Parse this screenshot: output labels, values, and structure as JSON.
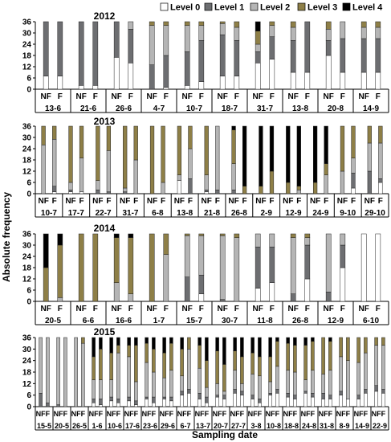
{
  "legend": {
    "items": [
      {
        "label": "Level 0",
        "color": "#ffffff"
      },
      {
        "label": "Level 1",
        "color": "#6d6e71"
      },
      {
        "label": "Level 2",
        "color": "#b5b5b5"
      },
      {
        "label": "Level 3",
        "color": "#8e7f47"
      },
      {
        "label": "Level 4",
        "color": "#000000"
      }
    ]
  },
  "ylabel": "Absolute frequency",
  "xlabel": "Sampling date",
  "chart_data": [
    {
      "type": "bar",
      "title": "2012",
      "ylim": [
        0,
        36
      ],
      "yticks": [
        0,
        6,
        12,
        18,
        24,
        30,
        36
      ],
      "bar_labels": [
        "NF",
        "F"
      ],
      "groups": [
        {
          "date": "13-6",
          "NF": [
            7,
            29,
            0,
            0,
            0
          ],
          "F": [
            7,
            29,
            0,
            0,
            0
          ]
        },
        {
          "date": "21-6",
          "NF": [
            2,
            34,
            0,
            0,
            0
          ],
          "F": [
            2,
            34,
            0,
            0,
            0
          ]
        },
        {
          "date": "26-6",
          "NF": [
            17,
            19,
            0,
            0,
            0
          ],
          "F": [
            14,
            18,
            4,
            0,
            0
          ]
        },
        {
          "date": "4-7",
          "NF": [
            0,
            13,
            21,
            2,
            0
          ],
          "F": [
            1,
            17,
            16,
            2,
            0
          ]
        },
        {
          "date": "10-7",
          "NF": [
            2,
            18,
            14,
            2,
            0
          ],
          "F": [
            4,
            22,
            8,
            2,
            0
          ]
        },
        {
          "date": "18-7",
          "NF": [
            7,
            22,
            6,
            1,
            0
          ],
          "F": [
            7,
            19,
            7,
            3,
            0
          ]
        },
        {
          "date": "31-7",
          "NF": [
            14,
            6,
            4,
            7,
            5
          ],
          "F": [
            16,
            12,
            6,
            2,
            0
          ]
        },
        {
          "date": "13-8",
          "NF": [
            9,
            17,
            7,
            3,
            0
          ],
          "F": [
            9,
            27,
            0,
            0,
            0
          ]
        },
        {
          "date": "20-8",
          "NF": [
            18,
            8,
            6,
            4,
            0
          ],
          "F": [
            9,
            18,
            9,
            0,
            0
          ]
        },
        {
          "date": "14-9",
          "NF": [
            9,
            18,
            6,
            3,
            0
          ],
          "F": [
            9,
            18,
            6,
            3,
            0
          ]
        }
      ]
    },
    {
      "type": "bar",
      "title": "2013",
      "ylim": [
        0,
        36
      ],
      "yticks": [
        0,
        6,
        12,
        18,
        24,
        30,
        36
      ],
      "bar_labels": [
        "NF",
        "F"
      ],
      "groups": [
        {
          "date": "10-7",
          "NF": [
            0,
            0,
            26,
            10,
            0
          ],
          "F": [
            1,
            3,
            25,
            7,
            0
          ]
        },
        {
          "date": "17-7",
          "NF": [
            1,
            1,
            4,
            30,
            0
          ],
          "F": [
            1,
            0,
            18,
            17,
            0
          ]
        },
        {
          "date": "22-7",
          "NF": [
            0,
            2,
            5,
            29,
            0
          ],
          "F": [
            0,
            1,
            22,
            13,
            0
          ]
        },
        {
          "date": "31-7",
          "NF": [
            0,
            1,
            2,
            33,
            0
          ],
          "F": [
            0,
            0,
            18,
            18,
            0
          ]
        },
        {
          "date": "6-8",
          "NF": [
            0,
            0,
            0,
            36,
            0
          ],
          "F": [
            0,
            0,
            6,
            30,
            0
          ]
        },
        {
          "date": "13-8",
          "NF": [
            7,
            0,
            3,
            26,
            0
          ],
          "F": [
            0,
            8,
            16,
            12,
            0
          ]
        },
        {
          "date": "21-8",
          "NF": [
            1,
            1,
            8,
            26,
            0
          ],
          "F": [
            0,
            2,
            34,
            0,
            0
          ]
        },
        {
          "date": "26-8",
          "NF": [
            0,
            2,
            14,
            18,
            2
          ],
          "F": [
            0,
            0,
            0,
            4,
            32
          ]
        },
        {
          "date": "2-9",
          "NF": [
            0,
            0,
            0,
            4,
            32
          ],
          "F": [
            0,
            0,
            0,
            12,
            24
          ]
        },
        {
          "date": "12-9",
          "NF": [
            0,
            0,
            0,
            6,
            30
          ],
          "F": [
            0,
            0,
            2,
            2,
            32
          ]
        },
        {
          "date": "24-9",
          "NF": [
            0,
            0,
            0,
            6,
            30
          ],
          "F": [
            0,
            0,
            10,
            6,
            20
          ]
        },
        {
          "date": "9-10",
          "NF": [
            0,
            0,
            12,
            24,
            0
          ],
          "F": [
            3,
            8,
            8,
            17,
            0
          ]
        },
        {
          "date": "29-10",
          "NF": [
            0,
            12,
            15,
            9,
            0
          ],
          "F": [
            6,
            2,
            19,
            9,
            0
          ]
        }
      ]
    },
    {
      "type": "bar",
      "title": "2014",
      "ylim": [
        0,
        36
      ],
      "yticks": [
        0,
        6,
        12,
        18,
        24,
        30,
        36
      ],
      "bar_labels": [
        "NF",
        "F"
      ],
      "groups": [
        {
          "date": "20-5",
          "NF": [
            0,
            0,
            0,
            18,
            18
          ],
          "F": [
            0,
            0,
            2,
            28,
            6
          ]
        },
        {
          "date": "6-6",
          "NF": [
            0,
            0,
            0,
            36,
            0
          ],
          "F": [
            0,
            0,
            0,
            36,
            0
          ]
        },
        {
          "date": "16-6",
          "NF": [
            0,
            0,
            10,
            24,
            2
          ],
          "F": [
            0,
            0,
            4,
            30,
            2
          ]
        },
        {
          "date": "1-7",
          "NF": [
            0,
            0,
            0,
            36,
            0
          ],
          "F": [
            0,
            0,
            25,
            11,
            0
          ]
        },
        {
          "date": "15-7",
          "NF": [
            0,
            13,
            22,
            1,
            0
          ],
          "F": [
            4,
            10,
            21,
            1,
            0
          ]
        },
        {
          "date": "30-7",
          "NF": [
            0,
            1,
            34,
            1,
            0
          ],
          "F": [
            0,
            0,
            34,
            2,
            0
          ]
        },
        {
          "date": "11-8",
          "NF": [
            7,
            22,
            7,
            0,
            0
          ],
          "F": [
            10,
            19,
            7,
            0,
            0
          ]
        },
        {
          "date": "26-8",
          "NF": [
            0,
            4,
            30,
            2,
            0
          ],
          "F": [
            12,
            18,
            4,
            2,
            0
          ]
        },
        {
          "date": "12-9",
          "NF": [
            0,
            5,
            31,
            0,
            0
          ],
          "F": [
            18,
            12,
            6,
            0,
            0
          ]
        },
        {
          "date": "6-10",
          "NF": [
            36,
            0,
            0,
            0,
            0
          ],
          "F": [
            36,
            0,
            0,
            0,
            0
          ]
        }
      ]
    },
    {
      "type": "bar",
      "title": "2015",
      "ylim": [
        0,
        36
      ],
      "yticks": [
        0,
        6,
        12,
        18,
        24,
        30,
        36
      ],
      "bar_labels": [
        "NF",
        "F"
      ],
      "groups": [
        {
          "date": "15-5",
          "NF": [
            0,
            7,
            29,
            0,
            0
          ],
          "F": [
            0,
            2,
            34,
            0,
            0
          ]
        },
        {
          "date": "20-5",
          "NF": [
            0,
            1,
            35,
            0,
            0
          ],
          "F": [
            0,
            0,
            36,
            0,
            0
          ]
        },
        {
          "date": "26-5",
          "NF": [
            0,
            0,
            36,
            0,
            0
          ],
          "F": [
            0,
            0,
            33,
            3,
            0
          ]
        },
        {
          "date": "1-6",
          "NF": [
            2,
            2,
            10,
            12,
            10
          ],
          "F": [
            1,
            3,
            10,
            16,
            6
          ]
        },
        {
          "date": "10-6",
          "NF": [
            3,
            2,
            9,
            14,
            8
          ],
          "F": [
            2,
            2,
            24,
            4,
            4
          ]
        },
        {
          "date": "17-6",
          "NF": [
            3,
            2,
            21,
            6,
            4
          ],
          "F": [
            1,
            2,
            10,
            19,
            4
          ]
        },
        {
          "date": "23-6",
          "NF": [
            4,
            1,
            18,
            10,
            3
          ],
          "F": [
            2,
            3,
            13,
            12,
            6
          ]
        },
        {
          "date": "29-6",
          "NF": [
            4,
            1,
            10,
            13,
            8
          ],
          "F": [
            3,
            2,
            14,
            14,
            3
          ]
        },
        {
          "date": "6-7",
          "NF": [
            6,
            2,
            8,
            14,
            6
          ],
          "F": [
            7,
            2,
            21,
            6,
            0
          ]
        },
        {
          "date": "13-7",
          "NF": [
            4,
            3,
            13,
            12,
            4
          ],
          "F": [
            2,
            3,
            5,
            14,
            12
          ]
        },
        {
          "date": "20-7",
          "NF": [
            5,
            1,
            6,
            17,
            7
          ],
          "F": [
            4,
            2,
            2,
            14,
            14
          ]
        },
        {
          "date": "27-7",
          "NF": [
            7,
            2,
            10,
            10,
            7
          ],
          "F": [
            6,
            2,
            4,
            14,
            10
          ]
        },
        {
          "date": "3-8",
          "NF": [
            4,
            2,
            11,
            11,
            8
          ],
          "F": [
            2,
            2,
            12,
            10,
            10
          ]
        },
        {
          "date": "10-8",
          "NF": [
            6,
            1,
            6,
            13,
            10
          ],
          "F": [
            7,
            2,
            12,
            13,
            2
          ]
        },
        {
          "date": "18-8",
          "NF": [
            5,
            2,
            12,
            14,
            3
          ],
          "F": [
            4,
            2,
            12,
            14,
            4
          ]
        },
        {
          "date": "24-8",
          "NF": [
            7,
            1,
            6,
            18,
            4
          ],
          "F": [
            5,
            2,
            12,
            15,
            2
          ]
        },
        {
          "date": "31-8",
          "NF": [
            4,
            3,
            10,
            19,
            0
          ],
          "F": [
            4,
            2,
            13,
            15,
            2
          ]
        },
        {
          "date": "8-9",
          "NF": [
            6,
            2,
            18,
            10,
            0
          ],
          "F": [
            4,
            0,
            20,
            12,
            0
          ]
        },
        {
          "date": "14-9",
          "NF": [
            4,
            2,
            17,
            13,
            0
          ],
          "F": [
            7,
            2,
            19,
            8,
            0
          ]
        },
        {
          "date": "22-9",
          "NF": [
            8,
            3,
            21,
            4,
            0
          ],
          "F": [
            7,
            2,
            23,
            4,
            0
          ]
        }
      ]
    }
  ]
}
